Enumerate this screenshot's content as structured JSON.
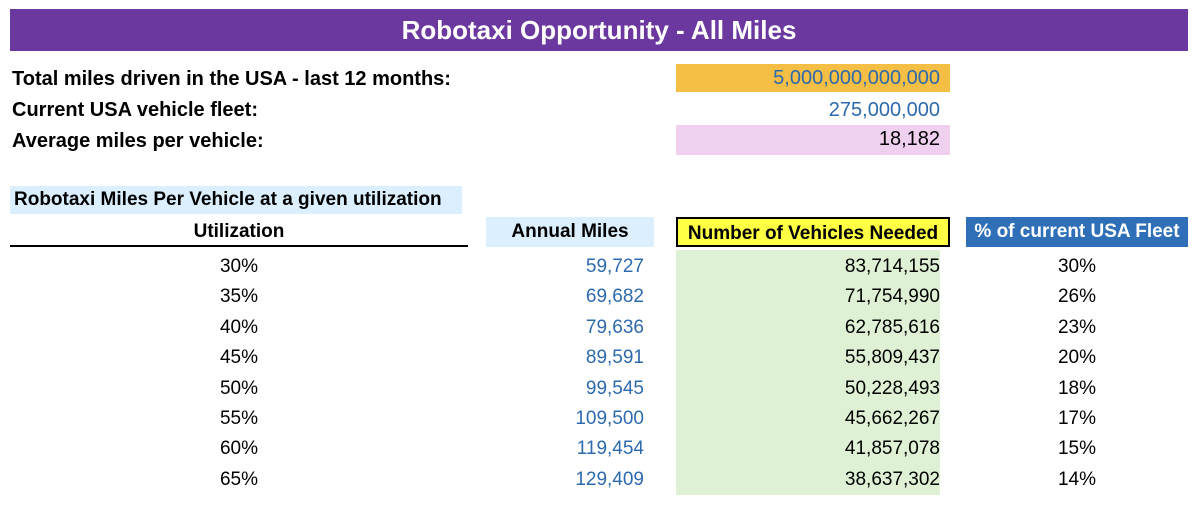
{
  "title": "Robotaxi Opportunity - All Miles",
  "summary": {
    "total_miles_label": "Total miles driven in the USA - last 12 months:",
    "total_miles_value": "5,000,000,000,000",
    "fleet_label": "Current USA vehicle fleet:",
    "fleet_value": "275,000,000",
    "avg_label": "Average miles per vehicle:",
    "avg_value": "18,182"
  },
  "colors": {
    "banner": "#6b38a0",
    "total_miles_bg": "#f5bf45",
    "avg_bg": "#efd0ef",
    "blue_text": "#2d6aad",
    "vehicles_header_bg": "#ffff43",
    "fleet_header_bg": "#2e6fb7",
    "green_column": "#dff1d5",
    "light_blue": "#dcefff"
  },
  "table": {
    "section_title": "Robotaxi Miles Per Vehicle at a given utilization",
    "headers": {
      "utilization": "Utilization",
      "annual_miles": "Annual Miles",
      "vehicles_needed": "Number of Vehicles Needed",
      "pct_fleet": "% of current USA Fleet"
    },
    "rows": [
      {
        "utilization": "30%",
        "annual_miles": "59,727",
        "vehicles_needed": "83,714,155",
        "pct_fleet": "30%"
      },
      {
        "utilization": "35%",
        "annual_miles": "69,682",
        "vehicles_needed": "71,754,990",
        "pct_fleet": "26%"
      },
      {
        "utilization": "40%",
        "annual_miles": "79,636",
        "vehicles_needed": "62,785,616",
        "pct_fleet": "23%"
      },
      {
        "utilization": "45%",
        "annual_miles": "89,591",
        "vehicles_needed": "55,809,437",
        "pct_fleet": "20%"
      },
      {
        "utilization": "50%",
        "annual_miles": "99,545",
        "vehicles_needed": "50,228,493",
        "pct_fleet": "18%"
      },
      {
        "utilization": "55%",
        "annual_miles": "109,500",
        "vehicles_needed": "45,662,267",
        "pct_fleet": "17%"
      },
      {
        "utilization": "60%",
        "annual_miles": "119,454",
        "vehicles_needed": "41,857,078",
        "pct_fleet": "15%"
      },
      {
        "utilization": "65%",
        "annual_miles": "129,409",
        "vehicles_needed": "38,637,302",
        "pct_fleet": "14%"
      }
    ]
  }
}
